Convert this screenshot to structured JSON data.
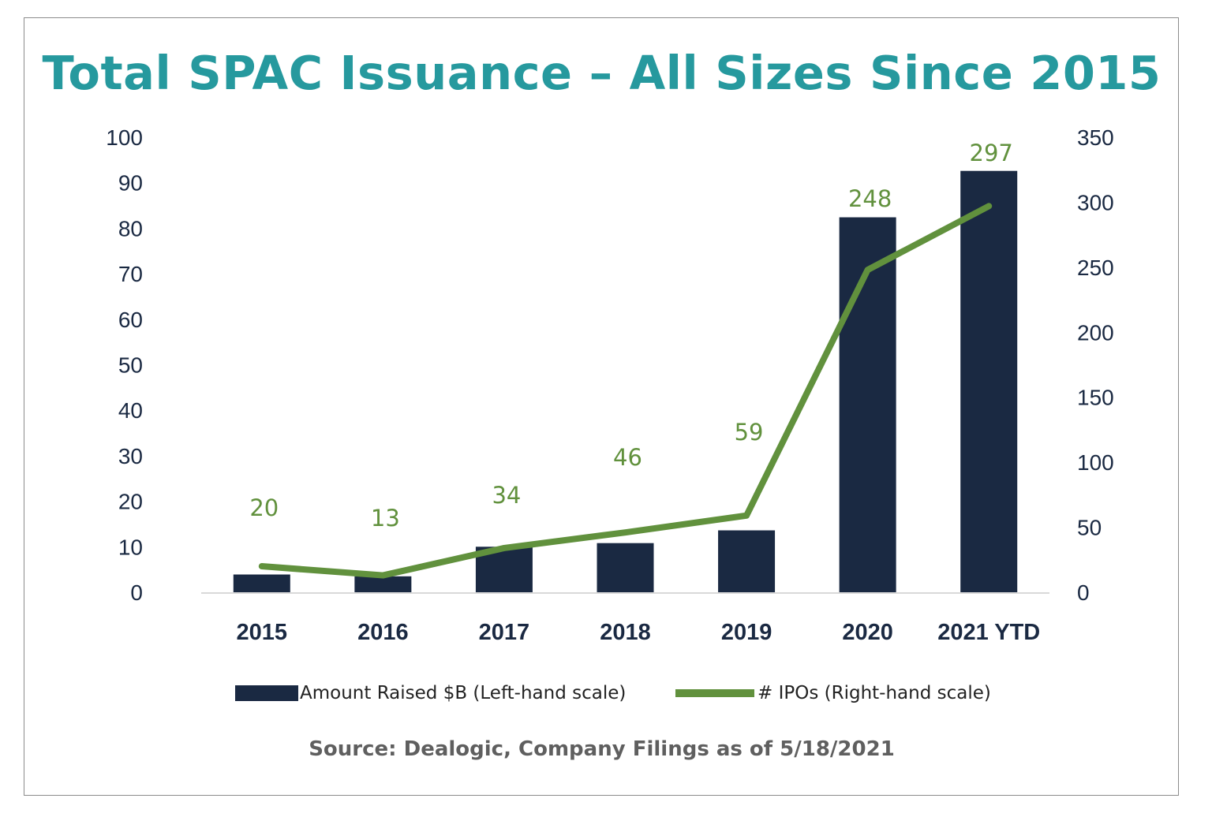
{
  "title": "Total SPAC Issuance – All Sizes Since 2015",
  "source": "Source: Dealogic, Company Filings as of 5/18/2021",
  "colors": {
    "title": "#26999e",
    "bar": "#1a2942",
    "line": "#61913d",
    "axis_text": "#1a2942",
    "source": "#5f5f5f"
  },
  "chart_data": {
    "type": "bar",
    "categories": [
      "2015",
      "2016",
      "2017",
      "2018",
      "2019",
      "2020",
      "2021 YTD"
    ],
    "series": [
      {
        "name": "Amount Raised $B (Left-hand scale)",
        "type": "bar",
        "axis": "left",
        "values": [
          3.9,
          3.5,
          10.0,
          10.8,
          13.6,
          82.4,
          92.6
        ]
      },
      {
        "name": "# IPOs (Right-hand scale)",
        "type": "line",
        "axis": "right",
        "values": [
          20,
          13,
          34,
          46,
          59,
          248,
          297
        ],
        "data_labels": [
          "20",
          "13",
          "34",
          "46",
          "59",
          "248",
          "297"
        ]
      }
    ],
    "left_axis": {
      "range": [
        0,
        100
      ],
      "ticks": [
        "0",
        "10",
        "20",
        "30",
        "40",
        "50",
        "60",
        "70",
        "80",
        "90",
        "100"
      ]
    },
    "right_axis": {
      "range": [
        0,
        350
      ],
      "ticks": [
        "0",
        "50",
        "100",
        "150",
        "200",
        "250",
        "300",
        "350"
      ]
    },
    "grid": false,
    "legend": "bottom"
  }
}
